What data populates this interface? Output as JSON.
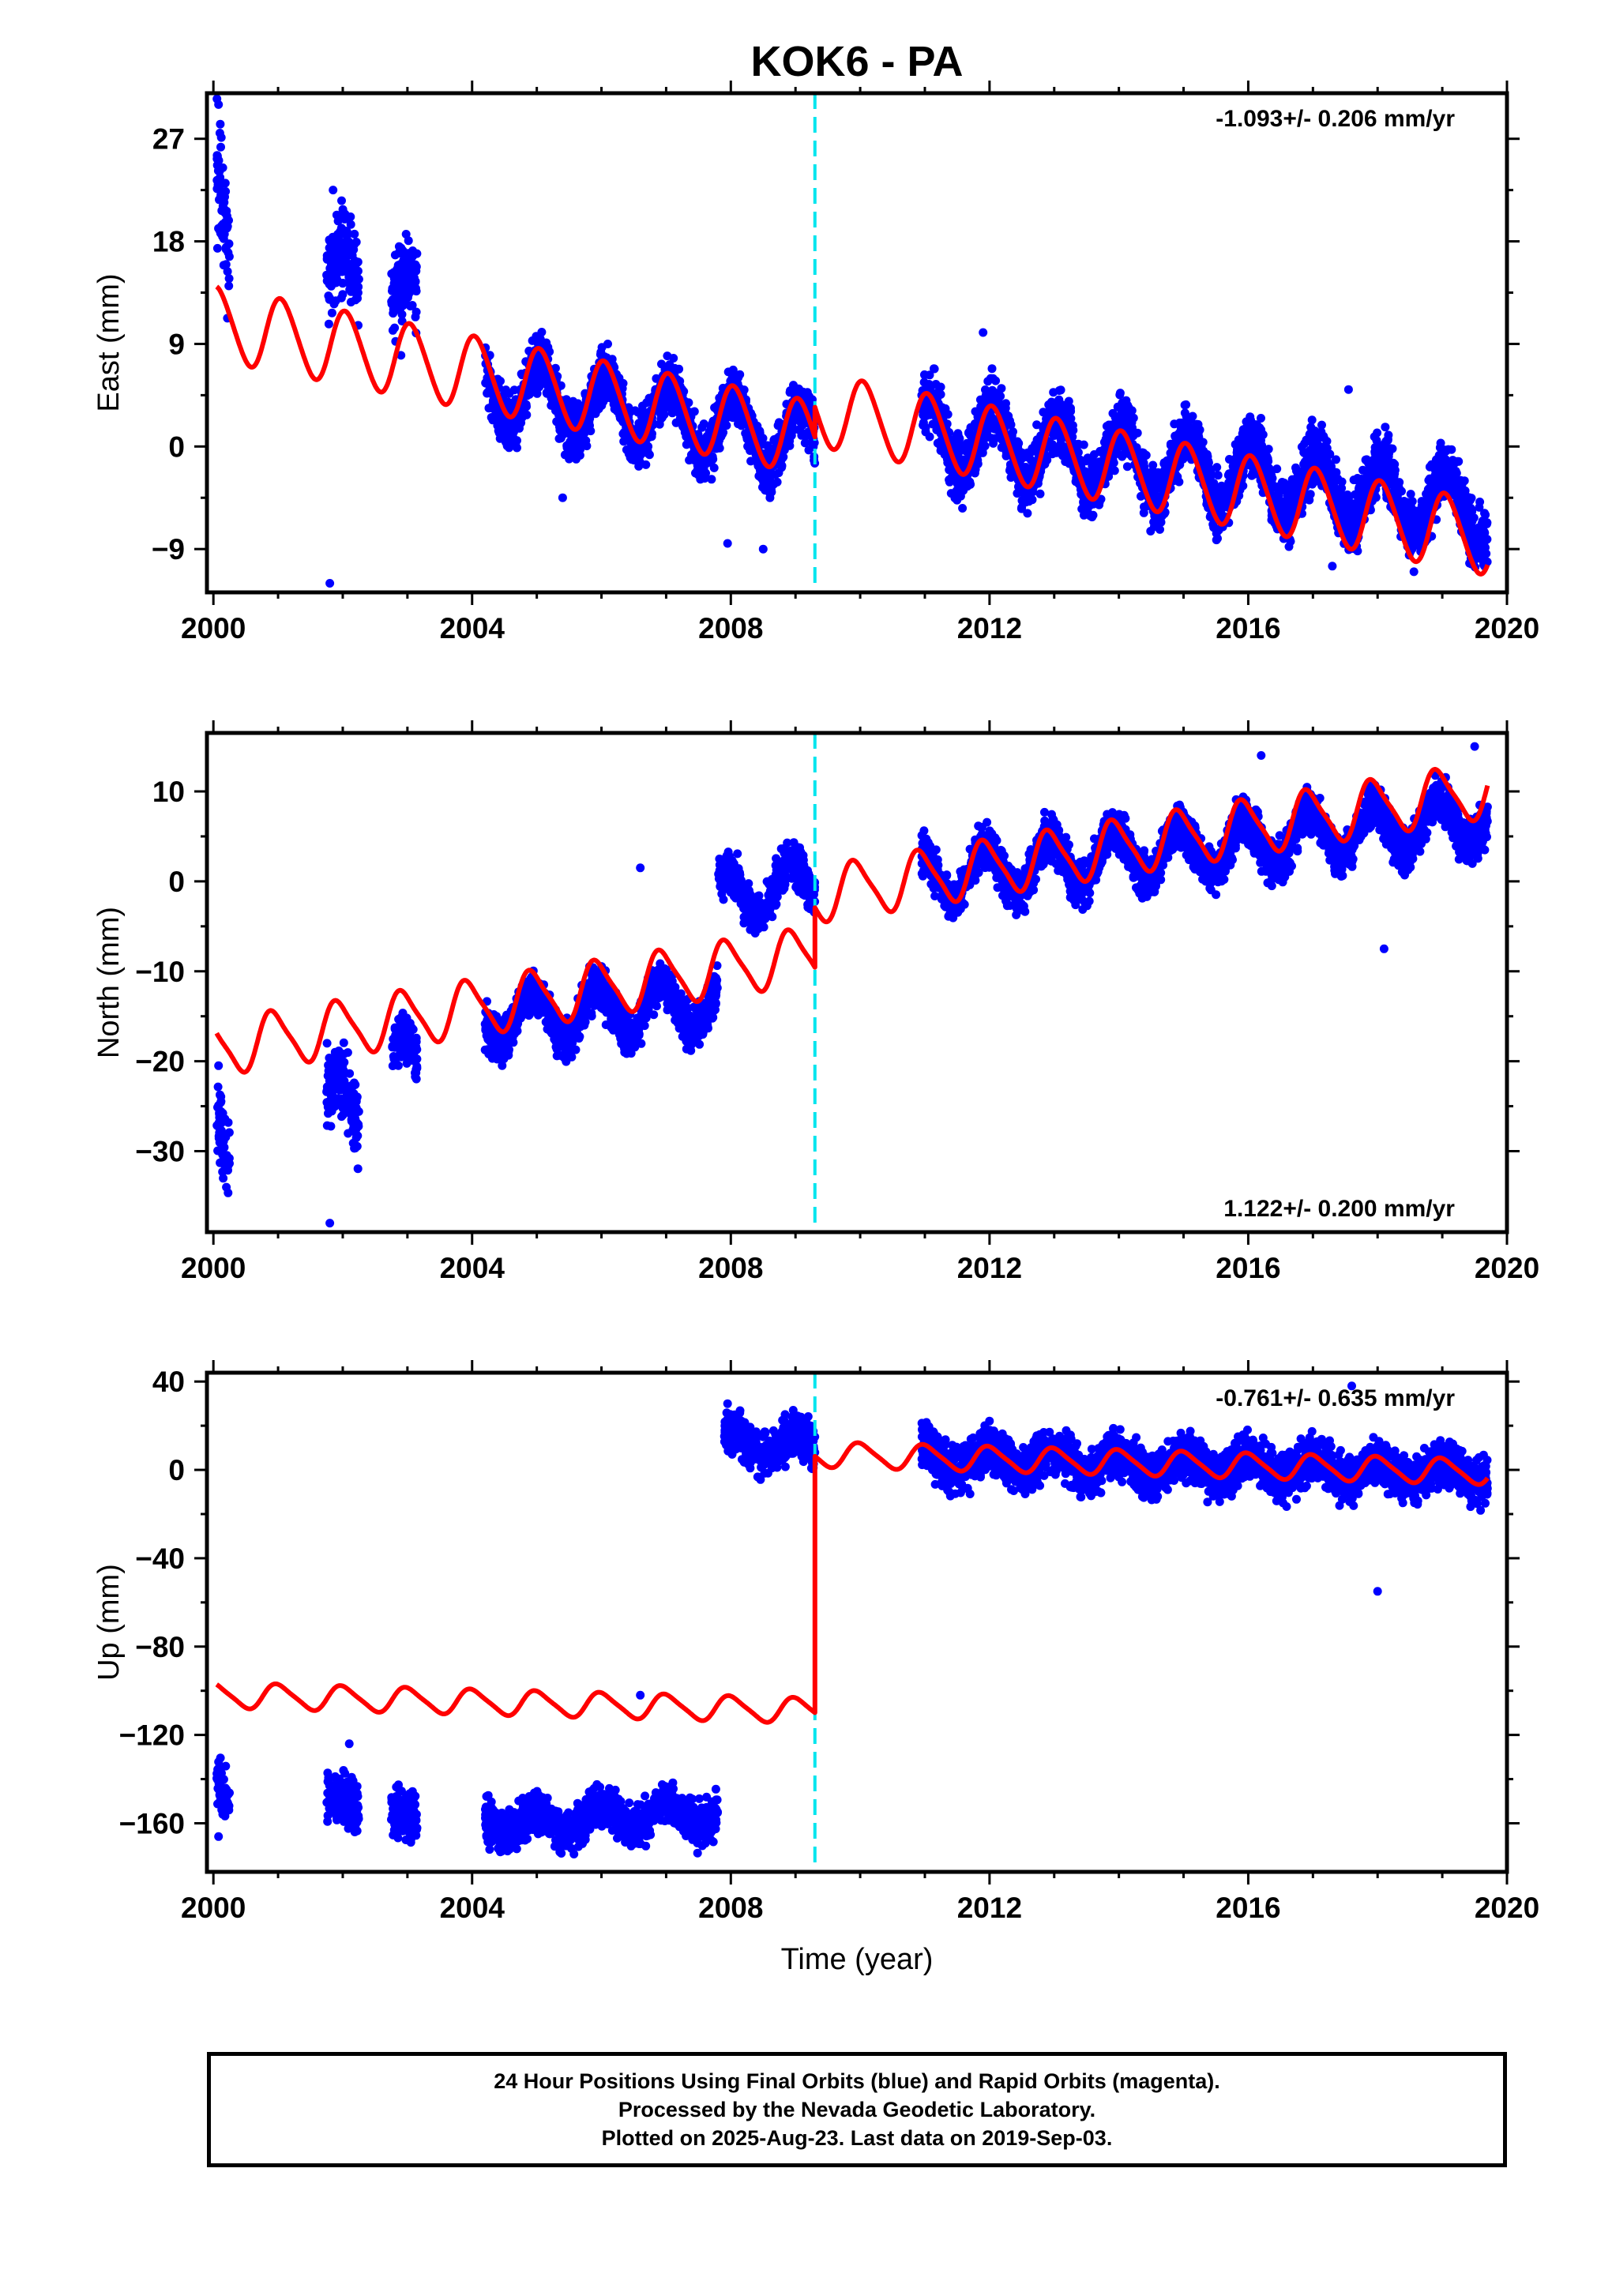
{
  "title": "KOK6 - PA",
  "xlabel": "Time (year)",
  "footer": {
    "line1": "24 Hour Positions Using Final Orbits (blue) and Rapid Orbits (magenta).",
    "line2": "Processed by the Nevada Geodetic Laboratory.",
    "line3": "Plotted on 2025-Aug-23. Last data on 2019-Sep-03."
  },
  "colors": {
    "data_points": "#0000ff",
    "model_line": "#ff0000",
    "equipment_change": "#00e5ee",
    "frame": "#000000"
  },
  "chart_data": [
    {
      "type": "scatter",
      "component": "East",
      "ylabel": "East (mm)",
      "rate_label": "-1.093+/- 0.206 mm/yr",
      "rate_position": "top-right",
      "xlim": [
        1999.9,
        2020.0
      ],
      "ylim": [
        -12.8,
        31
      ],
      "xticks": [
        2000,
        2004,
        2008,
        2012,
        2016,
        2020
      ],
      "yticks": [
        27,
        18,
        9,
        0,
        -9
      ],
      "grid": false,
      "equipment_change_x": 2009.3,
      "data_segments": [
        {
          "start": 2000.05,
          "end": 2000.25,
          "center_start": 22,
          "center_end": 15,
          "spread": 4,
          "outliers": [
            [
              2000.08,
              30
            ],
            [
              2000.1,
              27.5
            ]
          ]
        },
        {
          "start": 2001.75,
          "end": 2002.25,
          "center_start": 16,
          "center_end": 13,
          "spread": 3,
          "outliers": [
            [
              2001.85,
              22.5
            ],
            [
              2001.8,
              -12
            ]
          ]
        },
        {
          "start": 2002.75,
          "end": 2003.15,
          "center_start": 14,
          "center_end": 11,
          "spread": 2.5,
          "outliers": [
            [
              2002.9,
              8
            ]
          ]
        },
        {
          "start": 2004.2,
          "end": 2009.3,
          "center_start": 5.2,
          "center_end": 0.5,
          "spread": 1.8,
          "outliers": [
            [
              2007.95,
              -8.5
            ],
            [
              2008.5,
              -9
            ],
            [
              2005.4,
              -4.5
            ]
          ]
        },
        {
          "start": 2010.95,
          "end": 2019.7,
          "center_start": 1.2,
          "center_end": -5.5,
          "spread": 2.0,
          "outliers": [
            [
              2011.9,
              10
            ],
            [
              2017.3,
              -10.5
            ],
            [
              2017.55,
              5
            ]
          ]
        }
      ],
      "model": {
        "segments": [
          {
            "start": 2000.05,
            "end": 2009.3,
            "offset_start": 10.8,
            "rate": -1.093
          },
          {
            "start": 2009.3,
            "end": 2019.7,
            "offset_start": 3.3,
            "rate": -1.093
          }
        ],
        "annual_amplitude": 3.2,
        "annual_phase": 1.2,
        "semiannual_amplitude": 0.3
      }
    },
    {
      "type": "scatter",
      "component": "North",
      "ylabel": "North (mm)",
      "rate_label": "1.122+/- 0.200 mm/yr",
      "rate_position": "bottom-right",
      "xlim": [
        1999.9,
        2020.0
      ],
      "ylim": [
        -39,
        16.5
      ],
      "xticks": [
        2000,
        2004,
        2008,
        2012,
        2016,
        2020
      ],
      "yticks": [
        10,
        0,
        -10,
        -20,
        -30
      ],
      "grid": false,
      "equipment_change_x": 2009.3,
      "data_segments": [
        {
          "start": 2000.05,
          "end": 2000.25,
          "center_start": -28,
          "center_end": -31,
          "spread": 3,
          "outliers": [
            [
              2000.08,
              -20.5
            ],
            [
              2000.2,
              -34
            ]
          ]
        },
        {
          "start": 2001.75,
          "end": 2002.25,
          "center_start": -24,
          "center_end": -26,
          "spread": 3,
          "outliers": [
            [
              2001.8,
              -38
            ]
          ]
        },
        {
          "start": 2002.75,
          "end": 2003.15,
          "center_start": -20,
          "center_end": -20,
          "spread": 2,
          "outliers": []
        },
        {
          "start": 2004.2,
          "end": 2007.8,
          "center_start": -15.5,
          "center_end": -13.5,
          "spread": 1.8,
          "outliers": [
            [
              2006.6,
              1.5
            ]
          ]
        },
        {
          "start": 2007.8,
          "end": 2009.3,
          "center_start": -2,
          "center_end": 0,
          "spread": 1.8,
          "outliers": []
        },
        {
          "start": 2010.95,
          "end": 2019.7,
          "center_start": 0.5,
          "center_end": 7,
          "spread": 1.8,
          "outliers": [
            [
              2016.2,
              14
            ],
            [
              2018.1,
              -7.5
            ],
            [
              2019.5,
              15
            ]
          ]
        }
      ],
      "model": {
        "segments": [
          {
            "start": 2000.05,
            "end": 2009.3,
            "offset_start": -18.5,
            "rate": 1.122
          },
          {
            "start": 2009.3,
            "end": 2019.7,
            "offset_start": -1.5,
            "rate": 1.122
          }
        ],
        "annual_amplitude": 3.0,
        "annual_phase": 2.0,
        "semiannual_amplitude": 0.6
      }
    },
    {
      "type": "scatter",
      "component": "Up",
      "ylabel": "Up (mm)",
      "rate_label": "-0.761+/- 0.635 mm/yr",
      "rate_position": "top-right",
      "xlim": [
        1999.9,
        2020.0
      ],
      "ylim": [
        -182,
        44
      ],
      "xticks": [
        2000,
        2004,
        2008,
        2012,
        2016,
        2020
      ],
      "yticks": [
        40,
        0,
        -40,
        -80,
        -120,
        -160
      ],
      "grid": false,
      "equipment_change_x": 2009.3,
      "data_segments": [
        {
          "start": 2000.05,
          "end": 2000.25,
          "center_start": -145,
          "center_end": -150,
          "spread": 8,
          "outliers": [
            [
              2000.08,
              -166
            ]
          ]
        },
        {
          "start": 2001.75,
          "end": 2002.25,
          "center_start": -150,
          "center_end": -155,
          "spread": 8,
          "outliers": [
            [
              2002.1,
              -124
            ]
          ]
        },
        {
          "start": 2002.75,
          "end": 2003.15,
          "center_start": -158,
          "center_end": -162,
          "spread": 8,
          "outliers": []
        },
        {
          "start": 2004.2,
          "end": 2007.8,
          "center_start": -160,
          "center_end": -155,
          "spread": 7,
          "outliers": [
            [
              2006.6,
              -102
            ]
          ]
        },
        {
          "start": 2007.9,
          "end": 2009.3,
          "center_start": 12,
          "center_end": 10,
          "spread": 7,
          "outliers": [
            [
              2007.95,
              30
            ]
          ]
        },
        {
          "start": 2010.95,
          "end": 2019.7,
          "center_start": 5,
          "center_end": -2,
          "spread": 8,
          "outliers": [
            [
              2017.6,
              38
            ],
            [
              2018.0,
              -55
            ]
          ]
        }
      ],
      "model": {
        "segments": [
          {
            "start": 2000.05,
            "end": 2009.3,
            "offset_start": -102,
            "rate": -0.761
          },
          {
            "start": 2009.3,
            "end": 2019.7,
            "offset_start": 7,
            "rate": -0.761
          }
        ],
        "annual_amplitude": 5.5,
        "annual_phase": 1.5,
        "semiannual_amplitude": 1.0
      }
    }
  ]
}
